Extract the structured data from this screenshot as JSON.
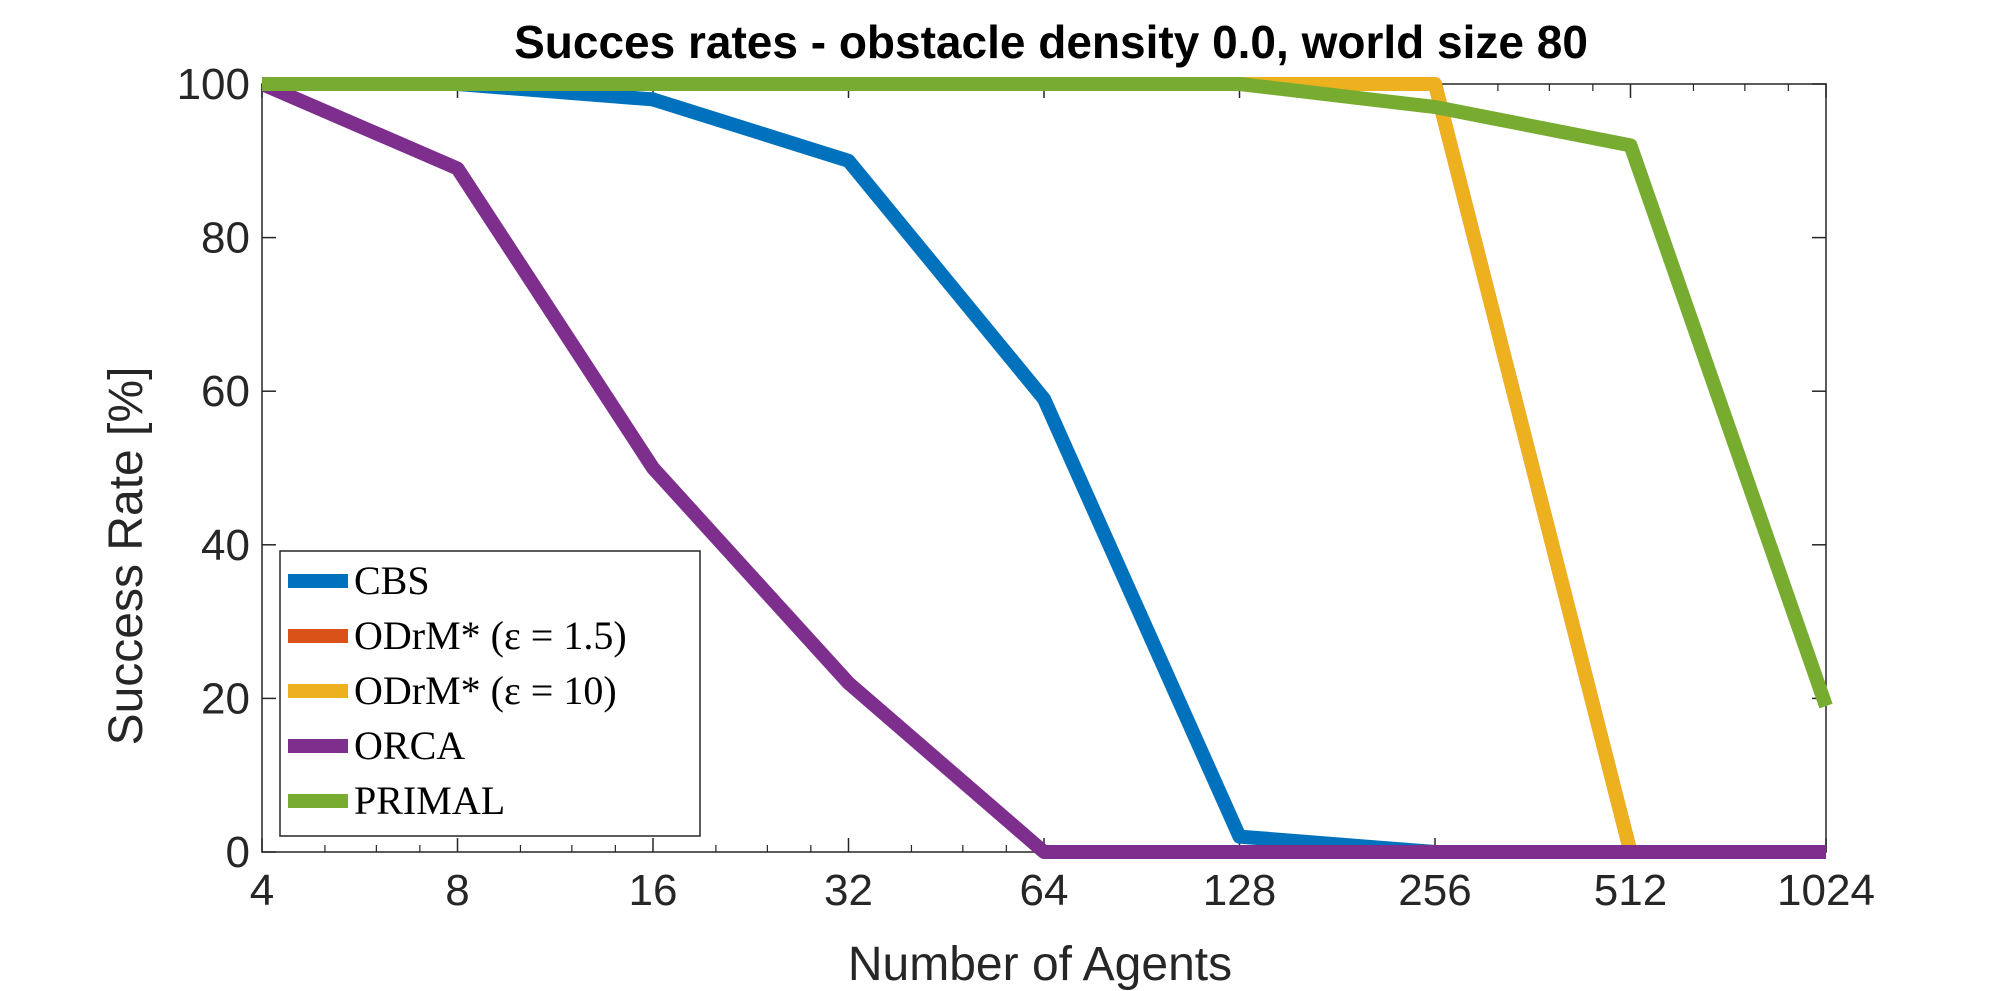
{
  "chart_data": {
    "type": "line",
    "title": "Succes rates - obstacle density 0.0, world size 80",
    "xlabel": "Number of Agents",
    "ylabel": "Success Rate [%]",
    "x_scale": "log2",
    "x": [
      4,
      8,
      16,
      32,
      64,
      128,
      256,
      512,
      1024
    ],
    "x_tick_labels": [
      "4",
      "8",
      "16",
      "32",
      "64",
      "128",
      "256",
      "512",
      "1024"
    ],
    "y_ticks": [
      0,
      20,
      40,
      60,
      80,
      100
    ],
    "y_tick_labels": [
      "0",
      "20",
      "40",
      "60",
      "80",
      "100"
    ],
    "xlim": [
      4,
      1024
    ],
    "ylim": [
      0,
      100
    ],
    "grid": false,
    "legend_position": "bottom-left",
    "series": [
      {
        "name": "CBS",
        "color": "#0072BD",
        "values": [
          100,
          100,
          98,
          90,
          59,
          2,
          0,
          0,
          0
        ]
      },
      {
        "name": "ODrM* (ε = 1.5)",
        "color": "#D95319",
        "values": [
          100,
          100,
          100,
          100,
          100,
          100,
          100,
          0,
          0
        ]
      },
      {
        "name": "ODrM* (ε = 10)",
        "color": "#EDB120",
        "values": [
          100,
          100,
          100,
          100,
          100,
          100,
          100,
          0,
          0
        ]
      },
      {
        "name": "ORCA",
        "color": "#7E2F8E",
        "values": [
          100,
          89,
          50,
          22,
          0,
          0,
          0,
          0,
          0
        ]
      },
      {
        "name": "PRIMAL",
        "color": "#77AC30",
        "values": [
          100,
          100,
          100,
          100,
          100,
          100,
          97,
          92,
          19
        ]
      }
    ]
  }
}
